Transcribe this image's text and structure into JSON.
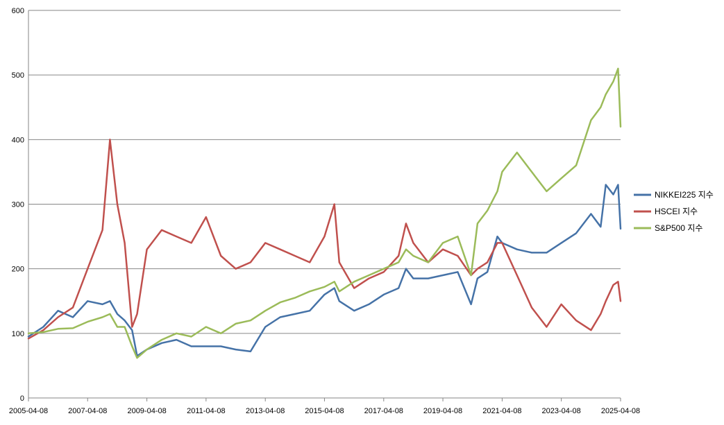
{
  "chart_data": {
    "type": "line",
    "title": "",
    "xlabel": "",
    "ylabel": "",
    "x_tick_labels": [
      "2005-04-08",
      "2007-04-08",
      "2009-04-08",
      "2011-04-08",
      "2013-04-08",
      "2015-04-08",
      "2017-04-08",
      "2019-04-08",
      "2021-04-08",
      "2023-04-08",
      "2025-04-08"
    ],
    "xlim": [
      "2005-04-08",
      "2025-04-08"
    ],
    "ylim": [
      0,
      600
    ],
    "y_ticks": [
      0,
      100,
      200,
      300,
      400,
      500,
      600
    ],
    "grid": "horizontal",
    "legend_position": "right",
    "x": [
      "2005-04-08",
      "2005-10-08",
      "2006-04-08",
      "2006-10-08",
      "2007-04-08",
      "2007-10-08",
      "2008-01-08",
      "2008-04-08",
      "2008-07-08",
      "2008-10-08",
      "2008-12-08",
      "2009-04-08",
      "2009-10-08",
      "2010-04-08",
      "2010-10-08",
      "2011-04-08",
      "2011-10-08",
      "2012-04-08",
      "2012-10-08",
      "2013-04-08",
      "2013-10-08",
      "2014-04-08",
      "2014-10-08",
      "2015-04-08",
      "2015-08-08",
      "2015-10-08",
      "2016-04-08",
      "2016-10-08",
      "2017-04-08",
      "2017-10-08",
      "2018-01-08",
      "2018-04-08",
      "2018-10-08",
      "2019-04-08",
      "2019-10-08",
      "2020-03-20",
      "2020-06-08",
      "2020-10-08",
      "2021-02-08",
      "2021-04-08",
      "2021-10-08",
      "2022-04-08",
      "2022-10-08",
      "2023-04-08",
      "2023-10-08",
      "2024-04-08",
      "2024-08-05",
      "2024-10-08",
      "2025-01-08",
      "2025-03-08",
      "2025-04-08"
    ],
    "series": [
      {
        "name": "NIKKEI225 지수",
        "color": "#4572A7",
        "values": [
          95,
          110,
          135,
          125,
          150,
          145,
          150,
          130,
          120,
          105,
          65,
          75,
          85,
          90,
          80,
          80,
          80,
          75,
          72,
          110,
          125,
          130,
          135,
          160,
          170,
          150,
          135,
          145,
          160,
          170,
          200,
          185,
          185,
          190,
          195,
          145,
          185,
          195,
          250,
          240,
          230,
          225,
          225,
          240,
          255,
          285,
          265,
          330,
          315,
          330,
          262
        ]
      },
      {
        "name": "HSCEI 지수",
        "color": "#C0504D",
        "values": [
          92,
          105,
          125,
          140,
          200,
          260,
          400,
          300,
          240,
          110,
          130,
          230,
          260,
          250,
          240,
          280,
          220,
          200,
          210,
          240,
          230,
          220,
          210,
          250,
          300,
          210,
          170,
          185,
          195,
          220,
          270,
          240,
          210,
          230,
          220,
          190,
          200,
          210,
          240,
          240,
          190,
          140,
          110,
          145,
          120,
          105,
          130,
          150,
          175,
          180,
          150
        ]
      },
      {
        "name": "S&P500 지수",
        "color": "#9BBB59",
        "values": [
          100,
          102,
          107,
          108,
          118,
          125,
          130,
          110,
          110,
          80,
          62,
          75,
          90,
          100,
          95,
          110,
          100,
          115,
          120,
          135,
          148,
          155,
          165,
          172,
          180,
          165,
          180,
          190,
          200,
          210,
          230,
          220,
          210,
          240,
          250,
          190,
          270,
          290,
          320,
          350,
          380,
          350,
          320,
          340,
          360,
          430,
          450,
          470,
          490,
          510,
          420
        ]
      }
    ]
  }
}
